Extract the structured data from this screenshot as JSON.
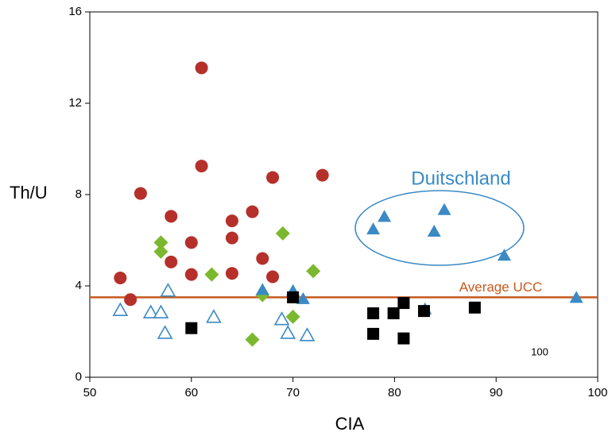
{
  "chart_data": {
    "type": "scatter",
    "x_label": "CIA",
    "y_label": "Th/U",
    "xlim": [
      50,
      100
    ],
    "ylim": [
      0,
      16
    ],
    "xticks": [
      50,
      60,
      70,
      80,
      90,
      100
    ],
    "yticks": [
      0,
      4,
      8,
      12,
      16
    ],
    "reference_line": {
      "value": 3.5,
      "label": "Average UCC",
      "color": "#c55a1e"
    },
    "annotations": [
      "Duitschland",
      "100"
    ],
    "series": [
      {
        "marker": "circle",
        "color": "#b5302a",
        "x": [
          53.0,
          54.0,
          55.0,
          58.0,
          58.0,
          60.0,
          60.0,
          61.0,
          61.0,
          64.0,
          64.0,
          64.0,
          66.0,
          67.0,
          68.0,
          68.0,
          72.9
        ],
        "values": [
          4.35,
          3.4,
          8.05,
          7.05,
          5.05,
          5.9,
          4.5,
          13.55,
          9.25,
          6.85,
          6.1,
          4.55,
          7.25,
          5.2,
          8.75,
          4.4,
          8.85
        ]
      },
      {
        "marker": "diamond",
        "color": "#7cb82f",
        "x": [
          57.0,
          57.0,
          62.0,
          67.0,
          66.0,
          69.0,
          70.0,
          72.0
        ],
        "values": [
          5.9,
          5.5,
          4.5,
          3.6,
          1.65,
          6.3,
          2.65,
          4.65
        ]
      },
      {
        "marker": "triangle-open",
        "color": "#3b8ac4",
        "x": [
          53.0,
          56.0,
          57.0,
          57.7,
          57.4,
          62.2,
          68.9,
          69.5,
          71.4
        ],
        "values": [
          2.95,
          2.85,
          2.85,
          3.8,
          1.95,
          2.65,
          2.55,
          1.95,
          1.85
        ]
      },
      {
        "marker": "triangle",
        "color": "#3b8ac4",
        "x": [
          67.0,
          70.0,
          71.0,
          77.9,
          79.0,
          83.0,
          83.9,
          84.9,
          90.8,
          97.9
        ],
        "values": [
          3.85,
          3.8,
          3.45,
          6.5,
          7.05,
          3.0,
          6.4,
          7.35,
          5.35,
          3.5
        ]
      },
      {
        "marker": "square",
        "color": "#000000",
        "x": [
          60.0,
          70.0,
          77.9,
          77.9,
          79.9,
          80.9,
          80.9,
          82.9,
          87.9
        ],
        "values": [
          2.15,
          3.5,
          2.8,
          1.9,
          2.8,
          3.25,
          1.7,
          2.9,
          3.05
        ]
      }
    ]
  }
}
